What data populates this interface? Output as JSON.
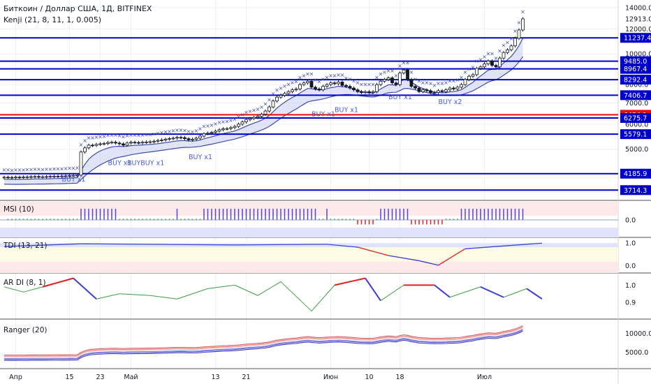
{
  "header": {
    "symbol": "Биткоин / Доллар США, 1Д, BITFINEX",
    "indicator": "Kenji (21, 8, 11, 1, 0.005)"
  },
  "colors": {
    "level": "#0000c8",
    "level_red": "#e01010",
    "candle": "#131722",
    "band_fill": "#c8cdf0",
    "band_line": "#3f4ca8",
    "cross": "#3f4ca8",
    "msi": "#4a4ae0",
    "tdi": "#3848c8",
    "ar_green": "#3aa040",
    "ar_red": "#e02020",
    "ar_blue": "#3b3bd6"
  },
  "chart_data": [
    {
      "type": "candlestick",
      "name": "price",
      "x_axis": {
        "ticks": [
          "Апр",
          "15",
          "23",
          "Май",
          "13",
          "21",
          "Июн",
          "10",
          "18",
          "Июл"
        ],
        "tick_days": [
          3,
          17,
          25,
          33,
          55,
          63,
          85,
          95,
          103,
          125
        ]
      },
      "y_axis": {
        "ticks": [
          14000,
          12000,
          10000,
          8000,
          7000,
          6000,
          5000
        ],
        "y_scale": "log",
        "ylim": [
          3500,
          14500
        ]
      },
      "last_price": 12913.0,
      "levels": [
        {
          "value": 11237.4,
          "color": "blue"
        },
        {
          "value": 9485.0,
          "color": "blue"
        },
        {
          "value": 8967.4,
          "color": "blue"
        },
        {
          "value": 8292.4,
          "color": "blue"
        },
        {
          "value": 7406.7,
          "color": "blue"
        },
        {
          "value": 6424.1,
          "color": "red"
        },
        {
          "value": 6275.7,
          "color": "blue"
        },
        {
          "value": 5579.1,
          "color": "blue"
        },
        {
          "value": 4185.9,
          "color": "blue"
        },
        {
          "value": 3714.3,
          "color": "blue"
        }
      ],
      "annotations": [
        {
          "text": "BUY x1",
          "day": 15,
          "value": 3950
        },
        {
          "text": "BUY x1",
          "day": 27,
          "value": 4450
        },
        {
          "text": "BUYBUY x1",
          "day": 32,
          "value": 4450
        },
        {
          "text": "BUY x1",
          "day": 48,
          "value": 4650
        },
        {
          "text": "BUY x1",
          "day": 80,
          "value": 6350
        },
        {
          "text": "BUY x1",
          "day": 86,
          "value": 6550
        },
        {
          "text": "BUY x1",
          "day": 100,
          "value": 7200
        },
        {
          "text": "BUY x2",
          "day": 113,
          "value": 6950
        }
      ],
      "series": [
        {
          "name": "close",
          "values": [
            4080,
            4075,
            4070,
            4082,
            4078,
            4085,
            4090,
            4095,
            4100,
            4088,
            4092,
            4098,
            4105,
            4110,
            4108,
            4115,
            4120,
            4130,
            4135,
            4140,
            4900,
            5050,
            5150,
            5140,
            5180,
            5200,
            5210,
            5250,
            5260,
            5230,
            5200,
            5150,
            5230,
            5260,
            5250,
            5240,
            5260,
            5270,
            5280,
            5300,
            5330,
            5350,
            5380,
            5400,
            5420,
            5450,
            5440,
            5400,
            5350,
            5380,
            5420,
            5500,
            5600,
            5620,
            5650,
            5700,
            5760,
            5800,
            5810,
            5850,
            5900,
            6000,
            6100,
            6200,
            6250,
            6300,
            6350,
            6450,
            6600,
            6800,
            7100,
            7300,
            7400,
            7500,
            7600,
            7700,
            7750,
            8000,
            8100,
            8200,
            7850,
            7750,
            7700,
            7900,
            8000,
            8100,
            8050,
            8150,
            7950,
            7900,
            7800,
            7700,
            7600,
            7550,
            7600,
            7550,
            7600,
            8000,
            8200,
            8300,
            8400,
            8100,
            8000,
            8700,
            8900,
            8300,
            7900,
            7800,
            7600,
            7700,
            7650,
            7550,
            7550,
            7650,
            7600,
            7700,
            7800,
            7750,
            7850,
            8000,
            8300,
            8500,
            8600,
            9000,
            9100,
            9300,
            9500,
            9200,
            9100,
            9700,
            10100,
            10300,
            10600,
            11200,
            11900,
            12900
          ]
        }
      ],
      "ylabel": "",
      "xlabel": ""
    },
    {
      "type": "bar",
      "name": "MSI",
      "title": "MSI (10)",
      "ylim": [
        -1,
        1
      ],
      "y_ticks": [
        0.0
      ],
      "note": "bars take values ~1 during uptrends, ~0 in sideways periods, negative in June dip"
    },
    {
      "type": "line",
      "name": "TDI",
      "title": "TDI (13, 21)",
      "ylim": [
        -0.2,
        1.1
      ],
      "y_ticks": [
        1.0,
        0.0
      ],
      "key_points": [
        {
          "day": 0,
          "value": 0.85
        },
        {
          "day": 20,
          "value": 0.97
        },
        {
          "day": 60,
          "value": 0.92
        },
        {
          "day": 84,
          "value": 0.95
        },
        {
          "day": 92,
          "value": 0.82
        },
        {
          "day": 100,
          "value": 0.45
        },
        {
          "day": 108,
          "value": 0.22
        },
        {
          "day": 113,
          "value": 0.02
        },
        {
          "day": 120,
          "value": 0.75
        },
        {
          "day": 140,
          "value": 1.0
        }
      ]
    },
    {
      "type": "line",
      "name": "AR DI",
      "title": "AR DI (8, 1)",
      "ylim": [
        0.82,
        1.05
      ],
      "y_ticks": [
        1.0,
        0.9
      ],
      "key_points": [
        {
          "day": 0,
          "value": 0.99
        },
        {
          "day": 5,
          "value": 0.96
        },
        {
          "day": 10,
          "value": 0.99
        },
        {
          "day": 18,
          "value": 1.04
        },
        {
          "day": 24,
          "value": 0.92
        },
        {
          "day": 30,
          "value": 0.95
        },
        {
          "day": 38,
          "value": 0.94
        },
        {
          "day": 45,
          "value": 0.92
        },
        {
          "day": 53,
          "value": 0.98
        },
        {
          "day": 60,
          "value": 1.0
        },
        {
          "day": 66,
          "value": 0.94
        },
        {
          "day": 72,
          "value": 1.02
        },
        {
          "day": 80,
          "value": 0.85
        },
        {
          "day": 86,
          "value": 1.0
        },
        {
          "day": 94,
          "value": 1.04
        },
        {
          "day": 98,
          "value": 0.91
        },
        {
          "day": 104,
          "value": 1.0
        },
        {
          "day": 112,
          "value": 1.0
        },
        {
          "day": 116,
          "value": 0.93
        },
        {
          "day": 124,
          "value": 0.99
        },
        {
          "day": 130,
          "value": 0.93
        },
        {
          "day": 136,
          "value": 0.98
        },
        {
          "day": 140,
          "value": 0.92
        }
      ]
    },
    {
      "type": "line",
      "name": "Ranger",
      "title": "Ranger (20)",
      "y_ticks": [
        10000.0,
        5000.0
      ],
      "note": "three red and three blue bands following the price trend"
    }
  ]
}
